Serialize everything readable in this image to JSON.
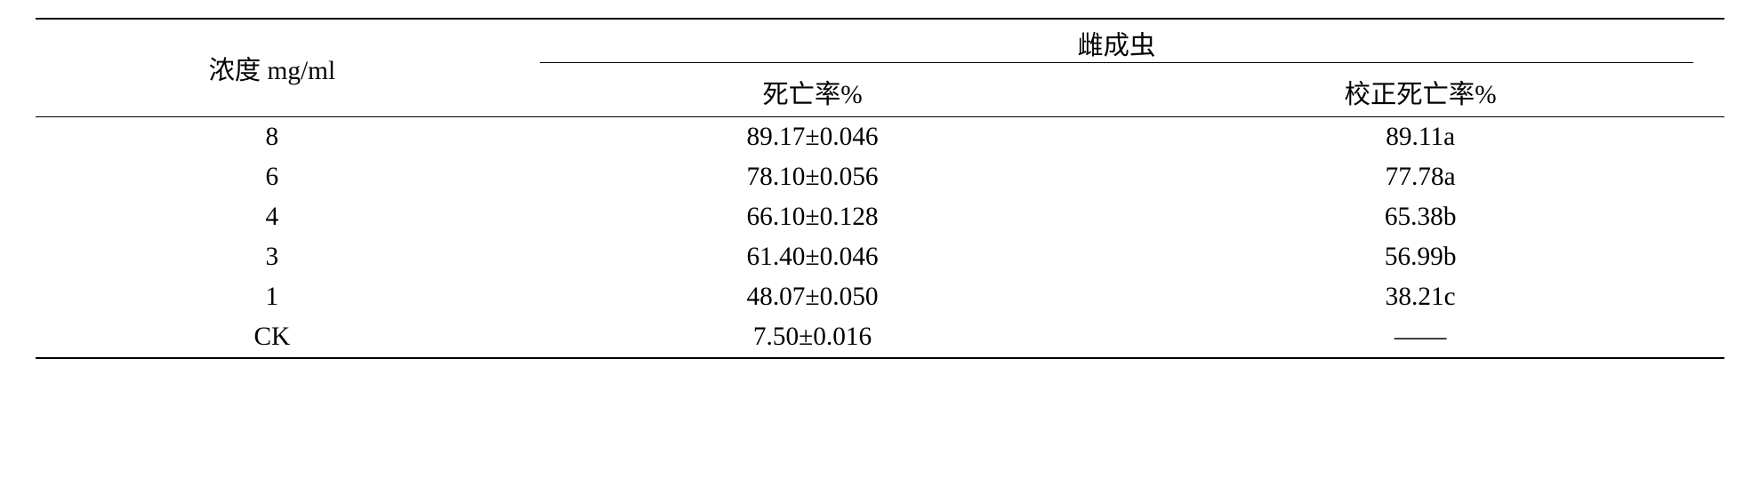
{
  "table": {
    "header": {
      "concentration_label": "浓度 mg/ml",
      "group_label": "雌成虫",
      "mortality_label": "死亡率%",
      "corrected_mortality_label": "校正死亡率%"
    },
    "rows": [
      {
        "conc": "8",
        "mortality": "89.17±0.046",
        "corrected": "89.11a"
      },
      {
        "conc": "6",
        "mortality": "78.10±0.056",
        "corrected": "77.78a"
      },
      {
        "conc": "4",
        "mortality": "66.10±0.128",
        "corrected": "65.38b"
      },
      {
        "conc": "3",
        "mortality": "61.40±0.046",
        "corrected": "56.99b"
      },
      {
        "conc": "1",
        "mortality": "48.07±0.050",
        "corrected": "38.21c"
      },
      {
        "conc": "CK",
        "mortality": "7.50±0.016",
        "corrected": "——"
      }
    ],
    "font_size_pt": 22,
    "text_color": "#000000",
    "background_color": "#ffffff",
    "rule_color": "#000000"
  }
}
